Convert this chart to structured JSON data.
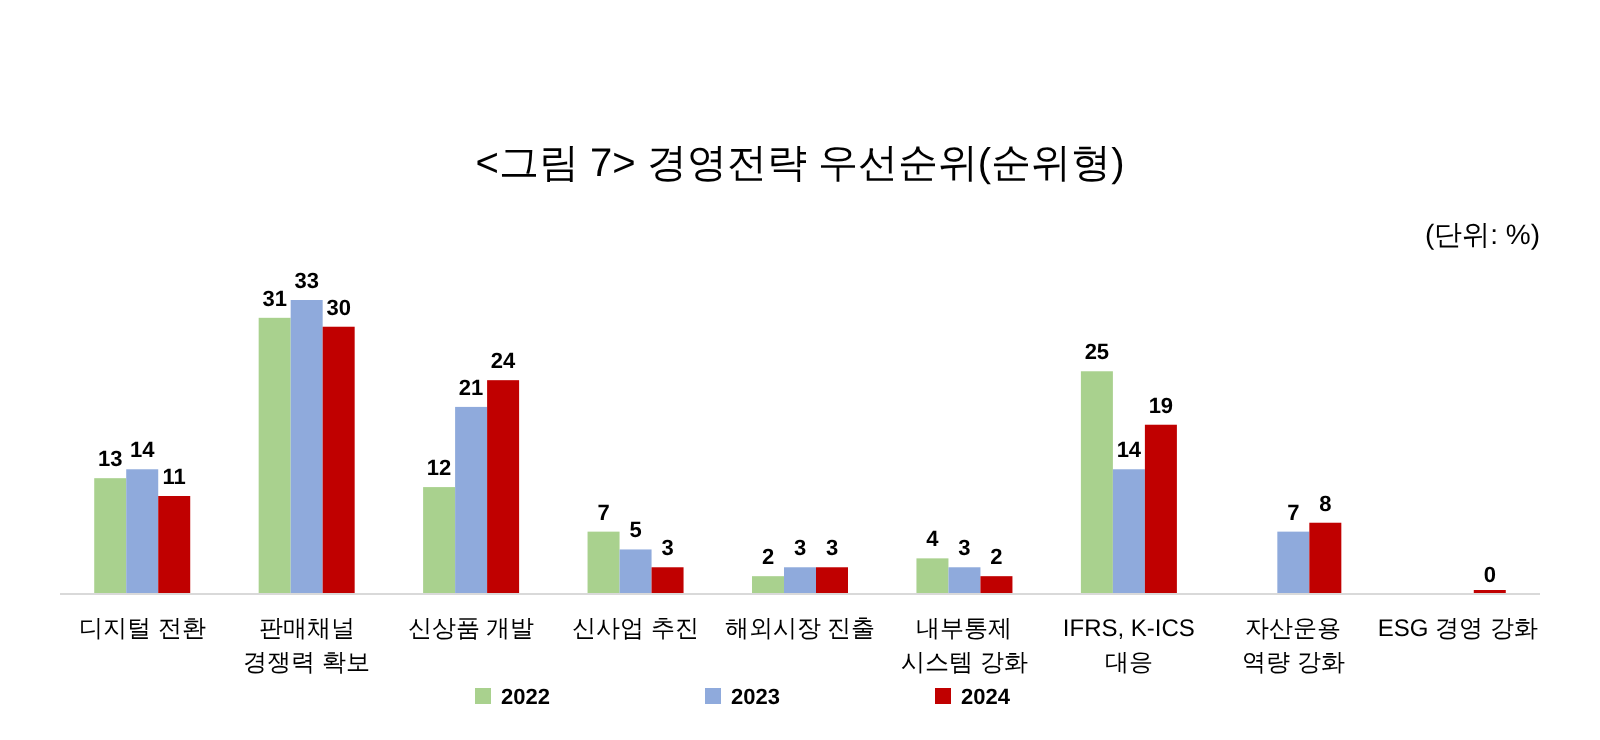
{
  "chart_data": {
    "type": "bar",
    "title": "<그림 7> 경영전략 우선순위(순위형)",
    "annotations": [
      "(단위: %)"
    ],
    "categories": [
      "디지털 전환",
      "판매채널\n경쟁력 확보",
      "신상품 개발",
      "신사업 추진",
      "해외시장 진출",
      "내부통제\n시스템 강화",
      "IFRS, K-ICS\n대응",
      "자산운용\n역량 강화",
      "ESG 경영 강화"
    ],
    "series": [
      {
        "name": "2022",
        "color": "#a9d18e",
        "values": [
          13,
          31,
          12,
          7,
          2,
          4,
          25,
          null,
          null
        ]
      },
      {
        "name": "2023",
        "color": "#8faadc",
        "values": [
          14,
          33,
          21,
          5,
          3,
          3,
          14,
          7,
          null
        ]
      },
      {
        "name": "2024",
        "color": "#c00000",
        "values": [
          11,
          30,
          24,
          3,
          3,
          2,
          19,
          8,
          0
        ]
      }
    ],
    "data_labels": true,
    "legend": "bottom"
  }
}
